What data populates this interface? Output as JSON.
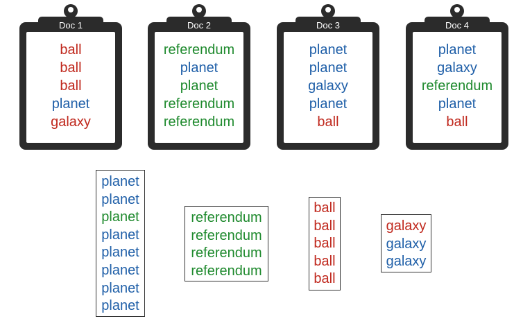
{
  "colors": {
    "ball": "#c0291e",
    "planet": "#1f5fa8",
    "galaxy": "#1f5fa8",
    "referendum": "#1f8a2e",
    "planet_green": "#1f8a2e",
    "galaxy_red": "#c0291e",
    "clipboard": "#2b2b2b",
    "paper": "#ffffff"
  },
  "documents": [
    {
      "title": "Doc 1",
      "words": [
        {
          "text": "ball",
          "color": "#c0291e"
        },
        {
          "text": "ball",
          "color": "#c0291e"
        },
        {
          "text": "ball",
          "color": "#c0291e"
        },
        {
          "text": "planet",
          "color": "#1f5fa8"
        },
        {
          "text": "galaxy",
          "color": "#c0291e"
        }
      ]
    },
    {
      "title": "Doc 2",
      "words": [
        {
          "text": "referendum",
          "color": "#1f8a2e"
        },
        {
          "text": "planet",
          "color": "#1f5fa8"
        },
        {
          "text": "planet",
          "color": "#1f8a2e"
        },
        {
          "text": "referendum",
          "color": "#1f8a2e"
        },
        {
          "text": "referendum",
          "color": "#1f8a2e"
        }
      ]
    },
    {
      "title": "Doc 3",
      "words": [
        {
          "text": "planet",
          "color": "#1f5fa8"
        },
        {
          "text": "planet",
          "color": "#1f5fa8"
        },
        {
          "text": "galaxy",
          "color": "#1f5fa8"
        },
        {
          "text": "planet",
          "color": "#1f5fa8"
        },
        {
          "text": "ball",
          "color": "#c0291e"
        }
      ]
    },
    {
      "title": "Doc 4",
      "words": [
        {
          "text": "planet",
          "color": "#1f5fa8"
        },
        {
          "text": "galaxy",
          "color": "#1f5fa8"
        },
        {
          "text": "referendum",
          "color": "#1f8a2e"
        },
        {
          "text": "planet",
          "color": "#1f5fa8"
        },
        {
          "text": "ball",
          "color": "#c0291e"
        }
      ]
    }
  ],
  "clusters": [
    {
      "words": [
        {
          "text": "planet",
          "color": "#1f5fa8"
        },
        {
          "text": "planet",
          "color": "#1f5fa8"
        },
        {
          "text": "planet",
          "color": "#1f8a2e"
        },
        {
          "text": "planet",
          "color": "#1f5fa8"
        },
        {
          "text": "planet",
          "color": "#1f5fa8"
        },
        {
          "text": "planet",
          "color": "#1f5fa8"
        },
        {
          "text": "planet",
          "color": "#1f5fa8"
        },
        {
          "text": "planet",
          "color": "#1f5fa8"
        }
      ]
    },
    {
      "words": [
        {
          "text": "referendum",
          "color": "#1f8a2e"
        },
        {
          "text": "referendum",
          "color": "#1f8a2e"
        },
        {
          "text": "referendum",
          "color": "#1f8a2e"
        },
        {
          "text": "referendum",
          "color": "#1f8a2e"
        }
      ]
    },
    {
      "words": [
        {
          "text": "ball",
          "color": "#c0291e"
        },
        {
          "text": "ball",
          "color": "#c0291e"
        },
        {
          "text": "ball",
          "color": "#c0291e"
        },
        {
          "text": "ball",
          "color": "#c0291e"
        },
        {
          "text": "ball",
          "color": "#c0291e"
        }
      ]
    },
    {
      "words": [
        {
          "text": "galaxy",
          "color": "#c0291e"
        },
        {
          "text": "galaxy",
          "color": "#1f5fa8"
        },
        {
          "text": "galaxy",
          "color": "#1f5fa8"
        }
      ]
    }
  ]
}
